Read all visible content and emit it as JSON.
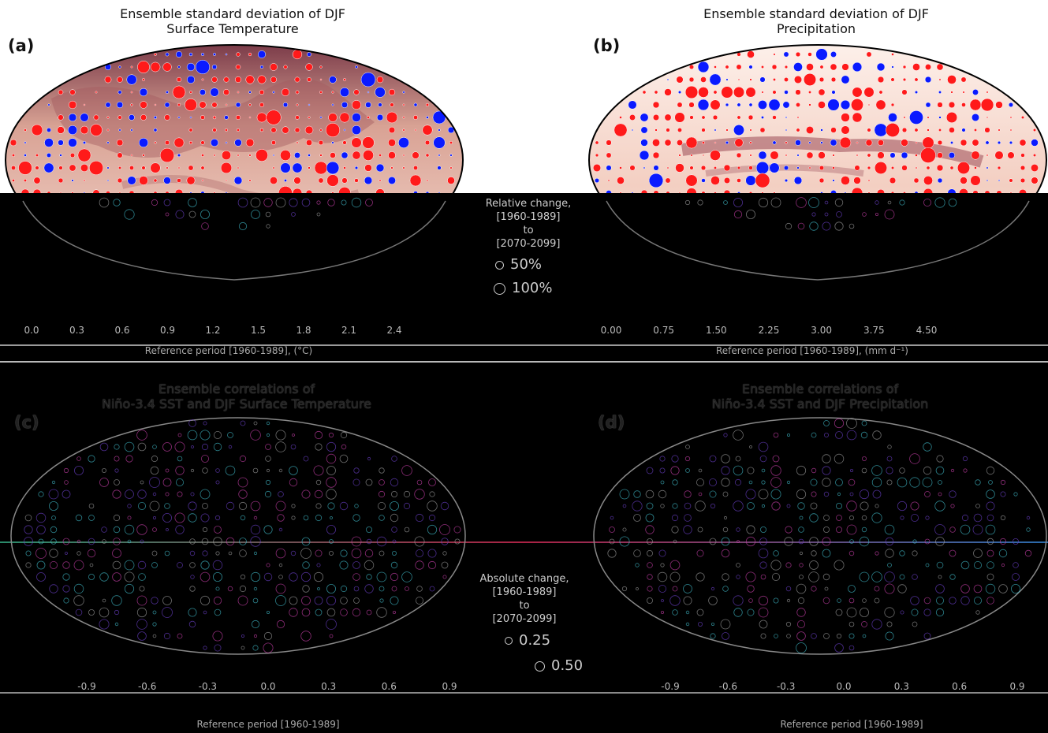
{
  "panels": {
    "a": {
      "label": "(a)",
      "title": "Ensemble standard deviation of DJF\nSurface Temperature",
      "colorbar_ticks": [
        "0.0",
        "0.3",
        "0.6",
        "0.9",
        "1.2",
        "1.5",
        "1.8",
        "2.1",
        "2.4"
      ],
      "colorbar_title": "Reference period [1960-1989], (°C)"
    },
    "b": {
      "label": "(b)",
      "title": "Ensemble standard deviation of DJF\nPrecipitation",
      "colorbar_ticks": [
        "0.00",
        "0.75",
        "1.50",
        "2.25",
        "3.00",
        "3.75",
        "4.50"
      ],
      "colorbar_title": "Reference period [1960-1989], (mm d⁻¹)"
    },
    "c": {
      "label": "(c)",
      "title": "Ensemble correlations of\nNiño-3.4 SST and DJF Surface Temperature",
      "colorbar_ticks": [
        "-0.9",
        "-0.6",
        "-0.3",
        "0.0",
        "0.3",
        "0.6",
        "0.9"
      ],
      "colorbar_title": "Reference period [1960-1989]"
    },
    "d": {
      "label": "(d)",
      "title": "Ensemble correlations of\nNiño-3.4 SST and DJF Precipitation",
      "colorbar_ticks": [
        "-0.9",
        "-0.6",
        "-0.3",
        "0.0",
        "0.3",
        "0.6",
        "0.9"
      ],
      "colorbar_title": "Reference period [1960-1989]"
    }
  },
  "legend_top": {
    "title": "Relative change,\n[1960-1989]\nto\n[2070-2099]",
    "items": [
      "50%",
      "100%"
    ]
  },
  "legend_bottom": {
    "title": "Absolute change,\n[1960-1989]\nto\n[2070-2099]",
    "items": [
      "0.25",
      "0.50"
    ]
  },
  "colors": {
    "increase": "#ff1a1a",
    "decrease": "#0a1aff",
    "map_low": "#fbe6de",
    "map_high": "#7a3a48",
    "corrupt_bg": "#000000"
  }
}
